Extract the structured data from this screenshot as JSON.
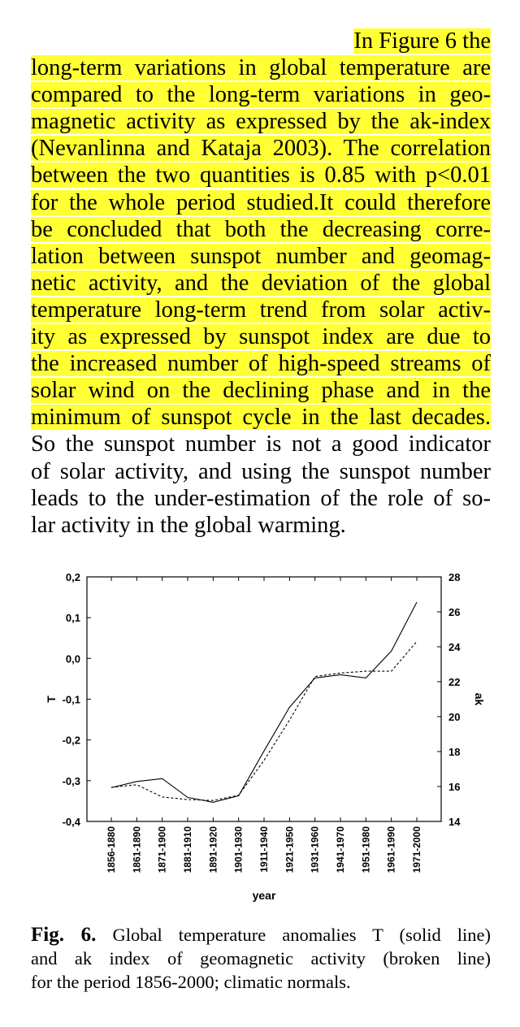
{
  "highlight_color": "#ffff33",
  "body_lines": [
    {
      "text": "In Figure 6 the",
      "highlight": true
    },
    {
      "text": "long-term variations in global temperature are",
      "highlight": true
    },
    {
      "text": "compared to the long-term variations in geo-",
      "highlight": true
    },
    {
      "text": "magnetic activity as expressed by the ak-index",
      "highlight": true
    },
    {
      "text": "(Nevanlinna and Kataja 2003). The correlation",
      "highlight": true
    },
    {
      "text": "between the two quantities is 0.85 with p<0.01",
      "highlight": true
    },
    {
      "text": "for the whole period studied.It could therefore",
      "highlight": true
    },
    {
      "text": "be concluded that both the decreasing corre-",
      "highlight": true
    },
    {
      "text": "lation between sunspot number and geomag-",
      "highlight": true
    },
    {
      "text": "netic activity, and the deviation of the global",
      "highlight": true
    },
    {
      "text": "temperature long-term trend from solar activ-",
      "highlight": true
    },
    {
      "text": "ity as expressed by sunspot index are due to",
      "highlight": true
    },
    {
      "text": "the increased number of high-speed streams of",
      "highlight": true
    },
    {
      "text": "solar wind on the declining phase and in the",
      "highlight": true
    },
    {
      "text": "minimum of sunspot cycle in the last decades.",
      "highlight": true
    },
    {
      "text": "So the sunspot number is not a good indicator",
      "highlight": false
    },
    {
      "text": "of solar activity, and using the sunspot number",
      "highlight": false
    },
    {
      "text": "leads to the under-estimation of the role of so-",
      "highlight": false
    },
    {
      "text": "lar activity in the global warming.",
      "highlight": false
    }
  ],
  "caption": {
    "label": "Fig. 6.",
    "lines": [
      "Global temperature anomalies T (solid line)",
      "and ak index of geomagnetic activity (broken line)",
      "for the period 1856-2000; climatic normals."
    ]
  },
  "chart_data": {
    "type": "line",
    "xlabel": "year",
    "ylabel": "T",
    "y2label": "ak",
    "categories": [
      "1856-1880",
      "1861-1890",
      "1871-1900",
      "1881-1910",
      "1891-1920",
      "1901-1930",
      "1911-1940",
      "1921-1950",
      "1931-1960",
      "1941-1970",
      "1951-1980",
      "1961-1990",
      "1971-2000"
    ],
    "ylim": [
      -0.4,
      0.2
    ],
    "y_ticks": [
      "0,2",
      "0,1",
      "0,0",
      "-0,1",
      "-0,2",
      "-0,3",
      "-0,4"
    ],
    "y2lim": [
      14,
      28
    ],
    "y2_ticks": [
      "28",
      "26",
      "24",
      "22",
      "20",
      "18",
      "16",
      "14"
    ],
    "grid": false,
    "series": [
      {
        "axis": "left",
        "style": "solid",
        "values": [
          -0.317,
          -0.302,
          -0.295,
          -0.341,
          -0.353,
          -0.337,
          -0.227,
          -0.12,
          -0.048,
          -0.04,
          -0.048,
          0.018,
          0.138
        ]
      },
      {
        "axis": "right",
        "style": "dashed",
        "values": [
          15.95,
          16.1,
          15.4,
          15.25,
          15.2,
          15.5,
          17.5,
          19.8,
          22.3,
          22.5,
          22.6,
          22.6,
          24.3
        ]
      }
    ]
  }
}
